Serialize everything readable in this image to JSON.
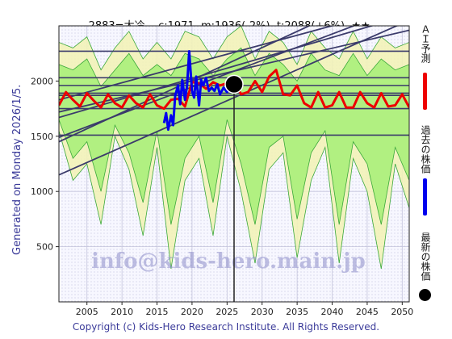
{
  "title": {
    "code": "2883=大冷",
    "current": "c:1971",
    "month": "m:1936(-2%)",
    "target": "t:2088(+6%)",
    "stars": "★★"
  },
  "generated": "Generated on Monday 2026/1/5.",
  "copyright": "Copyright (c) Kids-Hero Research Institute. All Rights Reserved.",
  "watermark_email": "info@kids-hero.main.jp",
  "legend": {
    "ai_forecast": "ＡＩ予測",
    "past_price": "過去の株価",
    "latest_price": "最新の株価"
  },
  "colors": {
    "ai_forecast": "#ee0000",
    "past_price": "#0000ee",
    "latest_price": "#000000",
    "band_light": "#f2f2b8",
    "band_green": "#aaf07a",
    "axis_text": "#3a3a99"
  },
  "chart_data": {
    "type": "line",
    "xlim": [
      2001,
      2051
    ],
    "ylim": [
      0,
      2500
    ],
    "x_ticks": [
      2005,
      2010,
      2015,
      2020,
      2025,
      2030,
      2035,
      2040,
      2045,
      2050
    ],
    "y_ticks": [
      500,
      1000,
      1500,
      2000
    ],
    "grid": true,
    "latest_point": {
      "x": 2026.0,
      "y": 1971
    },
    "horizontal_levels": [
      2270,
      2030,
      1960,
      1890,
      1870,
      1750,
      1510
    ],
    "trend_lines": [
      {
        "x": [
          2001,
          2051
        ],
        "y": [
          1490,
          2690
        ]
      },
      {
        "x": [
          2001,
          2051
        ],
        "y": [
          1450,
          2920
        ]
      },
      {
        "x": [
          2001,
          2051
        ],
        "y": [
          1150,
          2550
        ]
      },
      {
        "x": [
          2001,
          2051
        ],
        "y": [
          1670,
          2600
        ]
      },
      {
        "x": [
          2001,
          2051
        ],
        "y": [
          1830,
          2690
        ]
      },
      {
        "x": [
          2001,
          2051
        ],
        "y": [
          1720,
          2460
        ]
      }
    ],
    "series": [
      {
        "name": "ＡＩ予測",
        "x": [
          2001,
          2002,
          2003,
          2004,
          2005,
          2006,
          2007,
          2008,
          2009,
          2010,
          2011,
          2012,
          2013,
          2014,
          2015,
          2016,
          2017,
          2018,
          2019,
          2020,
          2021,
          2022,
          2023,
          2024,
          2025,
          2026,
          2027,
          2028,
          2029,
          2030,
          2031,
          2032,
          2033,
          2034,
          2035,
          2036,
          2037,
          2038,
          2039,
          2040,
          2041,
          2042,
          2043,
          2044,
          2045,
          2046,
          2047,
          2048,
          2049,
          2050,
          2051
        ],
        "y": [
          1780,
          1900,
          1830,
          1770,
          1890,
          1820,
          1760,
          1880,
          1800,
          1760,
          1870,
          1800,
          1760,
          1880,
          1780,
          1750,
          1830,
          1840,
          1770,
          1990,
          1980,
          1930,
          1990,
          1960,
          1980,
          2000,
          1880,
          1900,
          2000,
          1900,
          2040,
          2100,
          1880,
          1870,
          1960,
          1800,
          1760,
          1900,
          1760,
          1780,
          1900,
          1760,
          1760,
          1900,
          1800,
          1760,
          1890,
          1770,
          1780,
          1880,
          1760
        ]
      },
      {
        "name": "過去の株価",
        "x": [
          2016.0,
          2016.3,
          2016.6,
          2017.0,
          2017.3,
          2017.6,
          2018.0,
          2018.3,
          2018.6,
          2019.0,
          2019.3,
          2019.6,
          2020.0,
          2020.3,
          2020.6,
          2021.0,
          2021.3,
          2021.6,
          2022.0,
          2022.4,
          2022.8,
          2023.2,
          2023.6,
          2024.0,
          2024.5,
          2025.0,
          2025.5,
          2026.0
        ],
        "y": [
          1620,
          1710,
          1560,
          1690,
          1600,
          1870,
          1960,
          1790,
          2010,
          1830,
          1960,
          2270,
          1910,
          1850,
          2040,
          1780,
          2010,
          1960,
          2030,
          1910,
          1940,
          1910,
          1970,
          1880,
          1940,
          1900,
          1950,
          1971
        ]
      }
    ],
    "band_outer": {
      "x": [
        2001,
        2003,
        2005,
        2007,
        2009,
        2011,
        2013,
        2015,
        2017,
        2019,
        2021,
        2023,
        2025,
        2027,
        2029,
        2031,
        2033,
        2035,
        2037,
        2039,
        2041,
        2043,
        2045,
        2047,
        2049,
        2051
      ],
      "upper": [
        2350,
        2300,
        2400,
        2100,
        2300,
        2450,
        2200,
        2350,
        2200,
        2450,
        2400,
        2200,
        2400,
        2500,
        2200,
        2450,
        2350,
        2150,
        2450,
        2300,
        2200,
        2450,
        2200,
        2400,
        2300,
        2350
      ],
      "lower": [
        1550,
        1100,
        1250,
        700,
        1500,
        1200,
        600,
        1400,
        300,
        1100,
        1300,
        600,
        1500,
        1000,
        350,
        1200,
        1350,
        400,
        1100,
        1400,
        350,
        1300,
        1000,
        300,
        1250,
        850
      ]
    },
    "band_inner": {
      "x": [
        2001,
        2003,
        2005,
        2007,
        2009,
        2011,
        2013,
        2015,
        2017,
        2019,
        2021,
        2023,
        2025,
        2027,
        2029,
        2031,
        2033,
        2035,
        2037,
        2039,
        2041,
        2043,
        2045,
        2047,
        2049,
        2051
      ],
      "upper": [
        2150,
        2100,
        2200,
        1950,
        2100,
        2250,
        2050,
        2150,
        2050,
        2250,
        2200,
        2050,
        2200,
        2300,
        2050,
        2250,
        2150,
        2000,
        2250,
        2100,
        2050,
        2250,
        2050,
        2200,
        2100,
        2150
      ],
      "lower": [
        1650,
        1300,
        1450,
        1000,
        1600,
        1350,
        900,
        1550,
        700,
        1300,
        1500,
        900,
        1650,
        1250,
        700,
        1400,
        1500,
        750,
        1350,
        1550,
        700,
        1450,
        1250,
        700,
        1400,
        1100
      ]
    }
  }
}
